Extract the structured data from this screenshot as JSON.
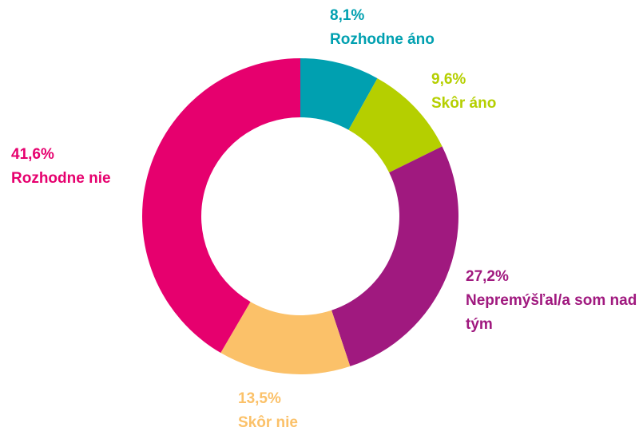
{
  "chart_data": {
    "type": "donut",
    "categories": [
      "Rozhodne áno",
      "Skôr áno",
      "Nepremýšľal/a som nad tým",
      "Skôr nie",
      "Rozhodne nie"
    ],
    "values": [
      8.1,
      9.6,
      27.2,
      13.5,
      41.6
    ],
    "value_labels": [
      "8,1%",
      "9,6%",
      "27,2%",
      "13,5%",
      "41,6%"
    ],
    "colors": [
      "#00a0b0",
      "#b5cf00",
      "#a0197f",
      "#fbc169",
      "#e6006e"
    ]
  }
}
